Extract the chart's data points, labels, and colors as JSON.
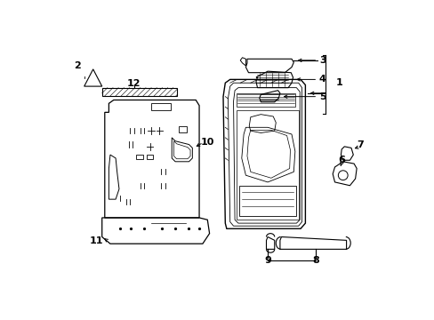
{
  "background_color": "#ffffff",
  "line_color": "#000000",
  "lw": 0.8,
  "fig_w": 4.89,
  "fig_h": 3.6,
  "dpi": 100
}
